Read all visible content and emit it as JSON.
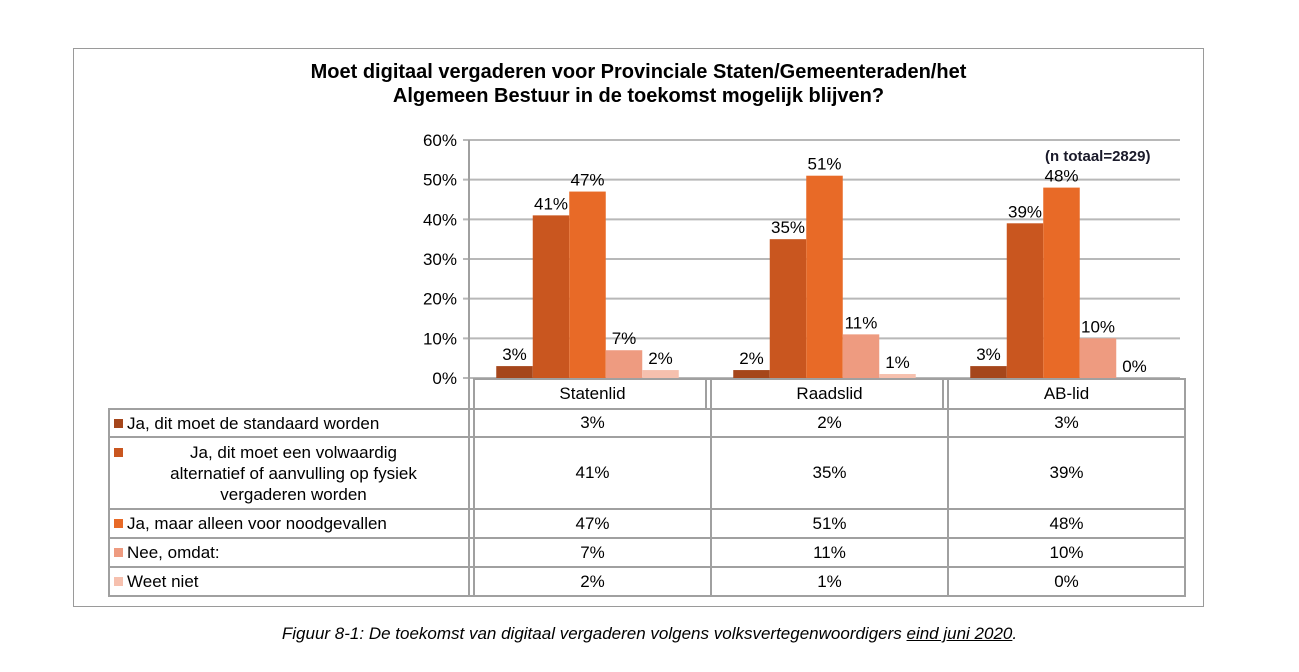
{
  "chart_data": {
    "type": "bar",
    "title": "Moet digitaal vergaderen voor Provinciale Staten/Gemeenteraden/het Algemeen Bestuur in de toekomst mogelijk blijven?",
    "title_lines": [
      "Moet digitaal vergaderen voor Provinciale Staten/Gemeenteraden/het",
      "Algemeen Bestuur in de toekomst mogelijk blijven?"
    ],
    "categories": [
      "Statenlid",
      "Raadslid",
      "AB-lid"
    ],
    "series": [
      {
        "name": "Ja, dit moet de standaard worden",
        "values": [
          3,
          2,
          3
        ],
        "color": "#A5461B"
      },
      {
        "name": "Ja, dit moet een volwaardig alternatief of aanvulling op fysiek vergaderen worden",
        "name_lines": [
          "Ja, dit moet een volwaardig",
          "alternatief of aanvulling op fysiek",
          "vergaderen worden"
        ],
        "values": [
          41,
          35,
          39
        ],
        "color": "#C9561F"
      },
      {
        "name": "Ja, maar alleen voor noodgevallen",
        "values": [
          47,
          51,
          48
        ],
        "color": "#E86A27"
      },
      {
        "name": "Nee, omdat:",
        "values": [
          7,
          11,
          10
        ],
        "color": "#EE9B80"
      },
      {
        "name": "Weet niet",
        "values": [
          2,
          1,
          0
        ],
        "color": "#F6C0AE"
      }
    ],
    "ylim": [
      0,
      60
    ],
    "yticks": [
      "0%",
      "10%",
      "20%",
      "30%",
      "40%",
      "50%",
      "60%"
    ],
    "ylabel": "",
    "xlabel": "",
    "grid": true,
    "legend": "data-table",
    "annotation": "(n totaal=2829)"
  },
  "caption": {
    "main": "Figuur 8-1: De toekomst van digitaal vergaderen volgens volksvertegenwoordigers ",
    "underlined": "eind juni 2020",
    "end": "."
  }
}
